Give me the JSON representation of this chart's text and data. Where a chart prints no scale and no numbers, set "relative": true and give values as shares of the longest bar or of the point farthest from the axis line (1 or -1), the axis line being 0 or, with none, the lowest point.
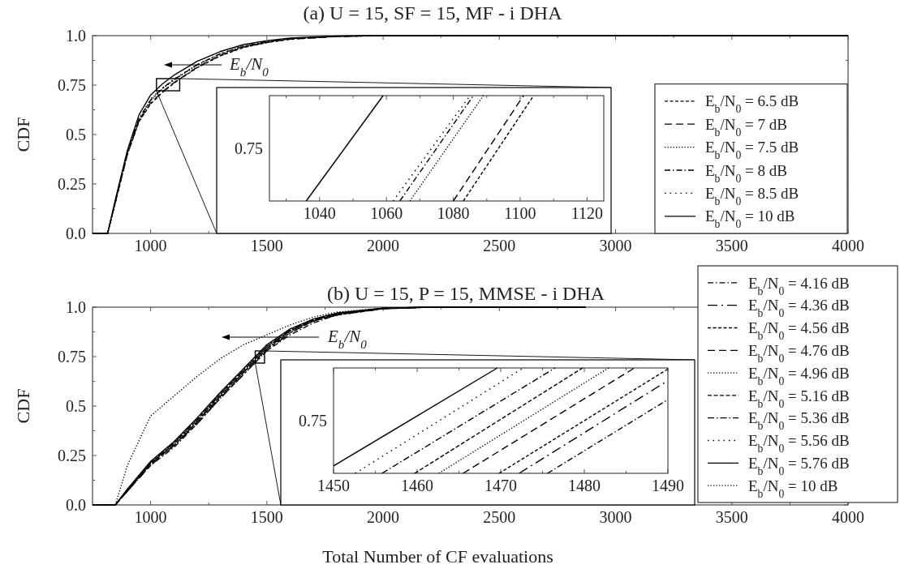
{
  "chart_data": [
    {
      "type": "line",
      "title": "(a) U = 15, SF = 15, MF - i DHA",
      "ylabel": "CDF",
      "annotations": [
        "E$_{b}$/N$_{0}$"
      ],
      "legend": "bottom right",
      "x": [
        750,
        815,
        850,
        900,
        950,
        1000,
        1050,
        1100,
        1200,
        1300,
        1400,
        1500,
        1600,
        1800,
        2000,
        2500,
        4000
      ],
      "xlim": [
        750,
        4000
      ],
      "xticks": [
        1000,
        {
          "value": 1250,
          "label": null
        },
        1500,
        {
          "value": 1750,
          "label": null
        },
        2000,
        {
          "value": 2250,
          "label": null
        },
        2500,
        {
          "value": 2750,
          "label": null
        },
        3000,
        {
          "value": 3250,
          "label": null
        },
        3500,
        {
          "value": 3750,
          "label": null
        },
        4000
      ],
      "ylim": [
        0,
        1
      ],
      "yticks": [
        {
          "value": 0,
          "label": "0.0"
        },
        {
          "value": 0.125,
          "label": null
        },
        0.25,
        {
          "value": 0.375,
          "label": null
        },
        0.5,
        {
          "value": 0.625,
          "label": null
        },
        0.75,
        {
          "value": 0.875,
          "label": null
        },
        {
          "value": 1,
          "label": "1.0"
        }
      ],
      "series": [
        {
          "name": "E$_{b}$/N$_{0}$ = 6.5 dB",
          "color": "#000000",
          "line_style": "dashed",
          "values": [
            0,
            0,
            0.165,
            0.4,
            0.565,
            0.655,
            0.712,
            0.76,
            0.838,
            0.898,
            0.94,
            0.965,
            0.982,
            0.996,
            1,
            1,
            1
          ]
        },
        {
          "name": "E$_{b}$/N$_{0}$ = 7 dB",
          "color": "#000000",
          "line_style": "dashed",
          "values": [
            0,
            0,
            0.165,
            0.4,
            0.57,
            0.66,
            0.715,
            0.762,
            0.84,
            0.9,
            0.942,
            0.966,
            0.982,
            0.996,
            1,
            1,
            1
          ]
        },
        {
          "name": "E$_{b}$/N$_{0}$ = 7.5 dB",
          "color": "#000000",
          "line_style": "dotted",
          "values": [
            0,
            0,
            0.17,
            0.405,
            0.575,
            0.67,
            0.73,
            0.775,
            0.85,
            0.906,
            0.946,
            0.969,
            0.984,
            0.997,
            1,
            1,
            1
          ]
        },
        {
          "name": "E$_{b}$/N$_{0}$ = 8 dB",
          "color": "#000000",
          "line_style": "dashdot",
          "values": [
            0,
            0,
            0.17,
            0.41,
            0.58,
            0.675,
            0.733,
            0.778,
            0.853,
            0.908,
            0.947,
            0.97,
            0.985,
            0.997,
            1,
            1,
            1
          ]
        },
        {
          "name": "E$_{b}$/N$_{0}$ = 8.5 dB",
          "color": "#000000",
          "line_style": "dotted",
          "values": [
            0,
            0,
            0.17,
            0.41,
            0.58,
            0.68,
            0.735,
            0.78,
            0.855,
            0.91,
            0.948,
            0.97,
            0.985,
            0.997,
            1,
            1,
            1
          ]
        },
        {
          "name": "E$_{b}$/N$_{0}$ = 10 dB",
          "color": "#000000",
          "line_style": "solid",
          "values": [
            0,
            0,
            0.18,
            0.42,
            0.6,
            0.7,
            0.755,
            0.8,
            0.87,
            0.92,
            0.955,
            0.975,
            0.988,
            0.998,
            1,
            1,
            1
          ]
        }
      ]
    },
    {
      "type": "line",
      "xlim": [
        1025,
        1125
      ],
      "xticks": [
        {
          "value": 1030,
          "label": null
        },
        1040,
        {
          "value": 1050,
          "label": null
        },
        1060,
        {
          "value": 1070,
          "label": null
        },
        1080,
        {
          "value": 1090,
          "label": null
        },
        1100,
        {
          "value": 1110,
          "label": null
        },
        1120
      ],
      "relative": true,
      "annotations": [
        "0.75"
      ],
      "series": [
        {
          "color": "#000000",
          "line_style": "dashed",
          "x": [
            1083,
            1104
          ],
          "values": [
            0,
            1
          ]
        },
        {
          "color": "#000000",
          "line_style": "dashed",
          "x": [
            1080,
            1101
          ],
          "values": [
            0,
            1
          ]
        },
        {
          "color": "#000000",
          "line_style": "dotted",
          "x": [
            1067,
            1089
          ],
          "values": [
            0,
            1
          ]
        },
        {
          "color": "#000000",
          "line_style": "dashdot",
          "x": [
            1064,
            1086
          ],
          "values": [
            0,
            1
          ]
        },
        {
          "color": "#000000",
          "line_style": "dotted",
          "x": [
            1062,
            1085
          ],
          "values": [
            0,
            1
          ]
        },
        {
          "color": "#000000",
          "line_style": "solid",
          "x": [
            1036,
            1059
          ],
          "values": [
            0,
            1
          ]
        }
      ]
    },
    {
      "type": "line",
      "title": "(b) U = 15, P = 15, MMSE - i DHA",
      "xlabel": "Total Number of CF evaluations",
      "ylabel": "CDF",
      "annotations": [
        "E$_{b}$/N$_{0}$"
      ],
      "legend": "right",
      "x": [
        750,
        848,
        900,
        1000,
        1100,
        1200,
        1300,
        1400,
        1500,
        1600,
        1700,
        1800,
        2000,
        2200,
        2870
      ],
      "xlim": [
        750,
        4000
      ],
      "xticks": [
        1000,
        {
          "value": 1250,
          "label": null
        },
        1500,
        {
          "value": 1750,
          "label": null
        },
        2000,
        {
          "value": 2250,
          "label": null
        },
        2500,
        {
          "value": 2750,
          "label": null
        },
        3000,
        {
          "value": 3250,
          "label": null
        },
        3500,
        {
          "value": 3750,
          "label": null
        },
        4000
      ],
      "ylim": [
        0,
        1
      ],
      "yticks": [
        {
          "value": 0,
          "label": "0.0"
        },
        {
          "value": 0.125,
          "label": null
        },
        0.25,
        {
          "value": 0.375,
          "label": null
        },
        0.5,
        {
          "value": 0.625,
          "label": null
        },
        0.75,
        {
          "value": 0.875,
          "label": null
        },
        {
          "value": 1,
          "label": "1.0"
        }
      ],
      "series": [
        {
          "name": "E$_{b}$/N$_{0}$ = 4.16 dB",
          "color": "#000000",
          "line_style": "dashdot",
          "values": [
            0,
            0,
            0.07,
            0.2,
            0.29,
            0.41,
            0.54,
            0.66,
            0.78,
            0.86,
            0.92,
            0.96,
            0.992,
            1,
            1
          ]
        },
        {
          "name": "E$_{b}$/N$_{0}$ = 4.36 dB",
          "color": "#000000",
          "line_style": "dashdot",
          "values": [
            0,
            0,
            0.07,
            0.2,
            0.3,
            0.41,
            0.54,
            0.66,
            0.78,
            0.87,
            0.93,
            0.96,
            0.992,
            1,
            1
          ]
        },
        {
          "name": "E$_{b}$/N$_{0}$ = 4.56 dB",
          "color": "#000000",
          "line_style": "dashed",
          "values": [
            0,
            0,
            0.07,
            0.21,
            0.3,
            0.42,
            0.55,
            0.67,
            0.79,
            0.87,
            0.93,
            0.96,
            0.993,
            1,
            1
          ]
        },
        {
          "name": "E$_{b}$/N$_{0}$ = 4.76 dB",
          "color": "#000000",
          "line_style": "dashed",
          "values": [
            0,
            0,
            0.07,
            0.21,
            0.3,
            0.42,
            0.55,
            0.67,
            0.79,
            0.88,
            0.93,
            0.965,
            0.993,
            1,
            1
          ]
        },
        {
          "name": "E$_{b}$/N$_{0}$ = 4.96 dB",
          "color": "#000000",
          "line_style": "dotted",
          "values": [
            0,
            0,
            0.075,
            0.21,
            0.31,
            0.42,
            0.55,
            0.67,
            0.79,
            0.88,
            0.93,
            0.965,
            0.994,
            1,
            1
          ]
        },
        {
          "name": "E$_{b}$/N$_{0}$ = 5.16 dB",
          "color": "#000000",
          "line_style": "dashed",
          "values": [
            0,
            0,
            0.075,
            0.21,
            0.31,
            0.43,
            0.56,
            0.68,
            0.8,
            0.88,
            0.935,
            0.965,
            0.994,
            1,
            1
          ]
        },
        {
          "name": "E$_{b}$/N$_{0}$ = 5.36 dB",
          "color": "#000000",
          "line_style": "dashdot",
          "values": [
            0,
            0,
            0.077,
            0.215,
            0.315,
            0.43,
            0.56,
            0.68,
            0.8,
            0.885,
            0.937,
            0.967,
            0.995,
            1,
            1
          ]
        },
        {
          "name": "E$_{b}$/N$_{0}$ = 5.56 dB",
          "color": "#000000",
          "line_style": "dotted",
          "values": [
            0,
            0,
            0.079,
            0.218,
            0.318,
            0.436,
            0.566,
            0.686,
            0.806,
            0.887,
            0.938,
            0.969,
            0.995,
            1,
            1
          ]
        },
        {
          "name": "E$_{b}$/N$_{0}$ = 5.76 dB",
          "color": "#000000",
          "line_style": "solid",
          "values": [
            0,
            0,
            0.08,
            0.22,
            0.32,
            0.44,
            0.57,
            0.69,
            0.81,
            0.89,
            0.94,
            0.97,
            0.995,
            1,
            1
          ]
        },
        {
          "name": "E$_{b}$/N$_{0}$ = 10 dB",
          "color": "#000000",
          "line_style": "dotted",
          "values": [
            0,
            0,
            0.2,
            0.45,
            0.55,
            0.65,
            0.74,
            0.81,
            0.86,
            0.91,
            0.95,
            0.975,
            0.995,
            1,
            1
          ]
        }
      ]
    },
    {
      "type": "line",
      "xlim": [
        1450,
        1490
      ],
      "xticks": [
        1450,
        {
          "value": 1455,
          "label": null
        },
        1460,
        {
          "value": 1465,
          "label": null
        },
        1470,
        {
          "value": 1475,
          "label": null
        },
        1480,
        {
          "value": 1485,
          "label": null
        },
        1490
      ],
      "relative": true,
      "annotations": [
        "0.75"
      ],
      "series": [
        {
          "color": "#000000",
          "line_style": "dashdot",
          "x": [
            1475.6,
            1490
          ],
          "values": [
            0,
            0.7
          ]
        },
        {
          "color": "#000000",
          "line_style": "dashdot",
          "x": [
            1472.2,
            1490
          ],
          "values": [
            0,
            0.88
          ]
        },
        {
          "color": "#000000",
          "line_style": "dashed",
          "x": [
            1469.8,
            1490
          ],
          "values": [
            0,
            0.99
          ]
        },
        {
          "color": "#000000",
          "line_style": "dashed",
          "x": [
            1465.5,
            1486
          ],
          "values": [
            0,
            1
          ]
        },
        {
          "color": "#000000",
          "line_style": "dotted",
          "x": [
            1462.6,
            1482.9
          ],
          "values": [
            0,
            1
          ]
        },
        {
          "color": "#000000",
          "line_style": "dashed",
          "x": [
            1459.7,
            1479.8
          ],
          "values": [
            0,
            1
          ]
        },
        {
          "color": "#000000",
          "line_style": "dashdot",
          "x": [
            1455.8,
            1476.5
          ],
          "values": [
            0,
            1
          ]
        },
        {
          "color": "#000000",
          "line_style": "dotted",
          "x": [
            1452.6,
            1472.7
          ],
          "values": [
            0,
            1
          ]
        },
        {
          "color": "#000000",
          "line_style": "solid",
          "x": [
            1450,
            1469.6
          ],
          "values": [
            0.07,
            1
          ]
        }
      ]
    }
  ]
}
